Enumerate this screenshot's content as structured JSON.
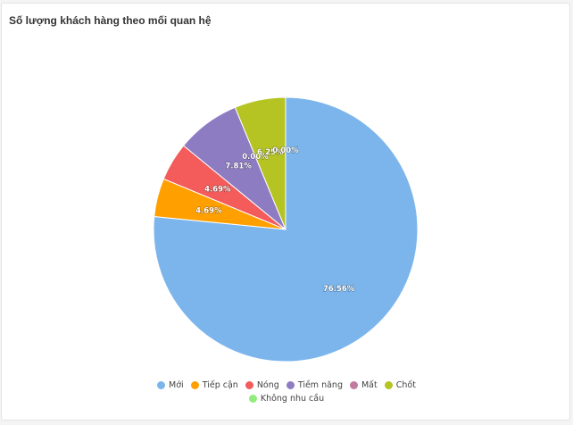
{
  "card": {
    "title": "Số lượng khách hàng theo mối quan hệ"
  },
  "chart_data": {
    "type": "pie",
    "title": "Số lượng khách hàng theo mối quan hệ",
    "legend_position": "bottom",
    "slices": [
      {
        "label": "Mới",
        "value": 76.56,
        "display": "76.56%",
        "color": "#7cb5ec"
      },
      {
        "label": "Tiếp cận",
        "value": 4.69,
        "display": "4.69%",
        "color": "#ff9f00"
      },
      {
        "label": "Nóng",
        "value": 4.69,
        "display": "4.69%",
        "color": "#f45b5b"
      },
      {
        "label": "Tiềm năng",
        "value": 7.81,
        "display": "7.81%",
        "color": "#8e7cc3"
      },
      {
        "label": "Mất",
        "value": 0.0,
        "display": "0.00%",
        "color": "#c27ba0"
      },
      {
        "label": "Chốt",
        "value": 6.25,
        "display": "6.25%",
        "color": "#b5c423"
      },
      {
        "label": "Không nhu cầu",
        "value": 0.0,
        "display": "0.00%",
        "color": "#90ed7d"
      }
    ]
  }
}
